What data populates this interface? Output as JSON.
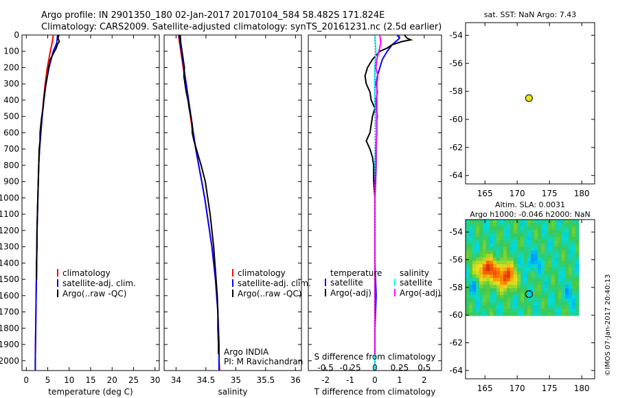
{
  "header": {
    "line1": "Argo profile: IN 2901350_180 02-Jan-2017 20170104_584 58.482S 171.824E",
    "line2": "Climatology: CARS2009. Satellite-adjusted climatology: synTS_20161231.nc (2.5d earlier)"
  },
  "colors": {
    "climatology": "#ff0000",
    "satellite": "#0000ff",
    "argo": "#000000",
    "sal_satellite": "#00ffff",
    "sal_argo": "#ff00ff",
    "float_marker": "#e6e619"
  },
  "chart_data": [
    {
      "id": "temperature",
      "type": "line",
      "xlabel": "temperature (deg C)",
      "ylabel": "",
      "xlim": [
        -1,
        31
      ],
      "ylim": [
        2060,
        0
      ],
      "xticks": [
        "0",
        "5",
        "10",
        "15",
        "20",
        "25",
        "30"
      ],
      "xtick_values": [
        0,
        5,
        10,
        15,
        20,
        25,
        30
      ],
      "yticks": [
        "0",
        "100",
        "200",
        "300",
        "400",
        "500",
        "600",
        "700",
        "800",
        "900",
        "1000",
        "1100",
        "1200",
        "1300",
        "1400",
        "1500",
        "1600",
        "1700",
        "1800",
        "1900",
        "2000"
      ],
      "ytick_values": [
        0,
        100,
        200,
        300,
        400,
        500,
        600,
        700,
        800,
        900,
        1000,
        1100,
        1200,
        1300,
        1400,
        1500,
        1600,
        1700,
        1800,
        1900,
        2000
      ],
      "legend": [
        "climatology",
        "satellite-adj. clim.",
        "Argo(..raw -QC)"
      ],
      "series": [
        {
          "name": "climatology",
          "color": "#ff0000",
          "depth": [
            0,
            50,
            100,
            200,
            300,
            400,
            500,
            600,
            700,
            800,
            1000,
            1200,
            1400,
            1600,
            1800,
            2000,
            2060
          ],
          "values": [
            6.3,
            6.0,
            5.6,
            4.9,
            4.4,
            4.0,
            3.7,
            3.4,
            3.1,
            2.9,
            2.7,
            2.5,
            2.4,
            2.3,
            2.2,
            2.1,
            2.1
          ]
        },
        {
          "name": "satellite-adj. clim.",
          "color": "#0000ff",
          "depth": [
            0,
            50,
            100,
            200,
            300,
            400,
            500,
            600,
            700,
            800,
            1000,
            1200,
            1400,
            1600,
            1800,
            2000,
            2060
          ],
          "values": [
            7.3,
            7.1,
            6.3,
            5.3,
            4.6,
            4.1,
            3.7,
            3.4,
            3.1,
            2.9,
            2.7,
            2.5,
            2.4,
            2.3,
            2.2,
            2.1,
            2.1
          ]
        },
        {
          "name": "Argo(..raw -QC)",
          "color": "#000000",
          "depth": [
            0,
            20,
            40,
            60,
            80,
            100,
            150,
            200,
            250,
            300,
            350,
            400,
            450,
            500,
            550,
            600,
            650,
            700,
            800,
            900,
            1000,
            1100,
            1200,
            1300,
            1400,
            1500
          ],
          "values": [
            7.6,
            7.4,
            7.7,
            7.2,
            7.0,
            6.6,
            5.6,
            5.2,
            4.9,
            4.6,
            4.3,
            4.1,
            3.9,
            3.6,
            3.4,
            3.2,
            3.2,
            3.0,
            2.9,
            2.8,
            2.7,
            2.6,
            2.5,
            2.5,
            2.4,
            2.4
          ]
        }
      ]
    },
    {
      "id": "salinity",
      "type": "line",
      "xlabel": "salinity",
      "xlim": [
        33.8,
        36.1
      ],
      "ylim": [
        2060,
        0
      ],
      "xticks": [
        "34",
        "34.5",
        "35",
        "35.5",
        "36"
      ],
      "xtick_values": [
        34,
        34.5,
        35,
        35.5,
        36
      ],
      "legend": [
        "climatology",
        "satellite-adj. clim.",
        "Argo(..raw -QC)"
      ],
      "annotation": [
        "Argo INDIA",
        "PI: M Ravichandran"
      ],
      "series": [
        {
          "name": "climatology",
          "color": "#ff0000",
          "depth": [
            0,
            100,
            200,
            300,
            400,
            500,
            600,
            700,
            800,
            900,
            1000,
            1100,
            1200,
            1300,
            1400,
            1500,
            1600,
            1700,
            1800,
            1900,
            2000,
            2060
          ],
          "values": [
            34.04,
            34.08,
            34.12,
            34.16,
            34.2,
            34.24,
            34.28,
            34.33,
            34.38,
            34.43,
            34.48,
            34.52,
            34.56,
            34.6,
            34.63,
            34.66,
            34.68,
            34.7,
            34.71,
            34.72,
            34.72,
            34.73
          ]
        },
        {
          "name": "satellite-adj. clim.",
          "color": "#0000ff",
          "depth": [
            0,
            100,
            200,
            300,
            400,
            500,
            600,
            700,
            800,
            900,
            1000,
            1100,
            1200,
            1300,
            1400,
            1500,
            1600,
            1700,
            1800,
            1900,
            2000,
            2060
          ],
          "values": [
            34.05,
            34.09,
            34.13,
            34.17,
            34.21,
            34.25,
            34.29,
            34.33,
            34.38,
            34.43,
            34.48,
            34.52,
            34.56,
            34.6,
            34.63,
            34.66,
            34.68,
            34.7,
            34.71,
            34.72,
            34.72,
            34.72
          ]
        },
        {
          "name": "Argo(..raw -QC)",
          "color": "#000000",
          "depth": [
            0,
            50,
            100,
            150,
            200,
            250,
            300,
            350,
            400,
            450,
            500,
            550,
            600,
            650,
            700,
            750,
            800,
            900,
            1000,
            1100,
            1200,
            1300,
            1400,
            1500,
            1600,
            1700,
            1800,
            1900,
            1960
          ],
          "values": [
            34.07,
            34.08,
            34.1,
            34.12,
            34.14,
            34.13,
            34.15,
            34.17,
            34.2,
            34.22,
            34.25,
            34.27,
            34.27,
            34.3,
            34.34,
            34.38,
            34.42,
            34.49,
            34.53,
            34.57,
            34.6,
            34.63,
            34.65,
            34.67,
            34.69,
            34.7,
            34.7,
            34.71,
            34.71
          ]
        }
      ]
    },
    {
      "id": "difference",
      "type": "line",
      "xlabel": "T difference from climatology",
      "xlabel_top": "S difference from climatology",
      "xlim": [
        -2.7,
        2.7
      ],
      "ylim": [
        2060,
        0
      ],
      "xticks": [
        "-2",
        "-1",
        "0",
        "1",
        "2"
      ],
      "xtick_values": [
        -2,
        -1,
        0,
        1,
        2
      ],
      "xticks_s": [
        "-0.5",
        "-0.25",
        "0",
        "0.25",
        "0.5"
      ],
      "xtick_values_s": [
        -0.5,
        -0.25,
        0,
        0.25,
        0.5
      ],
      "s_scale": 4,
      "legend_temperature": [
        "temperature",
        "satellite",
        "Argo(-adj)"
      ],
      "legend_salinity": [
        "salinity",
        "satellite",
        "Argo(-adj)"
      ],
      "series": [
        {
          "name": "temperature satellite",
          "color": "#0000ff",
          "depth": [
            0,
            20,
            40,
            60,
            80,
            100,
            150,
            200,
            250,
            300,
            350,
            400,
            450,
            500,
            550,
            600,
            700,
            800,
            1000,
            1200,
            1400,
            1600,
            1800,
            1960
          ],
          "values": [
            0.9,
            1.0,
            0.85,
            0.7,
            0.6,
            0.5,
            0.3,
            0.2,
            0.1,
            0.05,
            0.1,
            0.05,
            0.05,
            0.1,
            0.05,
            0.05,
            0.05,
            0.05,
            0.0,
            0.0,
            0.0,
            0.05,
            0.0,
            0.0
          ]
        },
        {
          "name": "temperature Argo(-adj)",
          "color": "#000000",
          "depth": [
            0,
            20,
            30,
            40,
            60,
            80,
            100,
            150,
            200,
            250,
            300,
            350,
            400,
            450,
            500,
            550,
            600,
            650,
            700,
            750,
            800,
            900,
            1000,
            1200,
            1400,
            1600,
            1800,
            1960
          ],
          "values": [
            1.2,
            1.3,
            1.45,
            1.1,
            0.7,
            0.5,
            0.2,
            -0.1,
            -0.3,
            -0.4,
            -0.35,
            -0.2,
            -0.15,
            0.0,
            -0.1,
            -0.15,
            -0.2,
            -0.35,
            -0.2,
            -0.1,
            -0.05,
            -0.05,
            0.0,
            0.0,
            0.0,
            0.0,
            0.0,
            0.0
          ]
        },
        {
          "name": "salinity satellite",
          "color": "#00ffff",
          "depth": [
            0,
            100,
            200,
            400,
            600,
            800,
            1000,
            1200,
            1400,
            1600,
            1800,
            2000,
            2060
          ],
          "values": [
            0.0,
            0.01,
            0.0,
            0.0,
            0.01,
            0.0,
            0.0,
            0.0,
            0.0,
            0.0,
            0.0,
            0.0,
            0.0
          ]
        },
        {
          "name": "salinity Argo(-adj)",
          "color": "#ff00ff",
          "depth": [
            0,
            50,
            100,
            150,
            200,
            250,
            300,
            400,
            500,
            600,
            700,
            800,
            900,
            1000,
            1200,
            1400,
            1600,
            1800,
            1960
          ],
          "values": [
            0.05,
            0.06,
            0.04,
            0.02,
            0.01,
            0.03,
            0.02,
            0.02,
            0.02,
            0.02,
            0.01,
            0.01,
            0.0,
            0.0,
            0.0,
            0.0,
            0.0,
            0.0,
            0.0
          ]
        }
      ]
    },
    {
      "id": "sst_map",
      "type": "scatter",
      "title": "sat. SST: NaN  Argo: 7.43",
      "xlim": [
        162,
        182
      ],
      "ylim": [
        -64.6,
        -53.1
      ],
      "xticks": [
        "165",
        "170",
        "175",
        "180"
      ],
      "xtick_values": [
        165,
        170,
        175,
        180
      ],
      "yticks": [
        "-54",
        "-56",
        "-58",
        "-60",
        "-62",
        "-64"
      ],
      "ytick_values": [
        -54,
        -56,
        -58,
        -60,
        -62,
        -64
      ],
      "points": [
        {
          "lon": 171.824,
          "lat": -58.482
        }
      ]
    },
    {
      "id": "sla_map",
      "type": "heatmap",
      "title_line1": "Altim. SLA: 0.0031",
      "title_line2": "Argo h1000: -0.046 h2000: NaN",
      "xlim": [
        162,
        182
      ],
      "ylim": [
        -64.6,
        -53.1
      ],
      "xticks": [
        "165",
        "170",
        "175",
        "180"
      ],
      "xtick_values": [
        165,
        170,
        175,
        180
      ],
      "yticks": [
        "-54",
        "-56",
        "-58",
        "-60",
        "-62",
        "-64"
      ],
      "ytick_values": [
        -54,
        -56,
        -58,
        -60,
        -62,
        -64
      ],
      "field_extent": {
        "lon": [
          162,
          180
        ],
        "lat": [
          -60.2,
          -53.1
        ]
      },
      "points": [
        {
          "lon": 171.824,
          "lat": -58.482
        }
      ]
    }
  ],
  "watermark": "©IMOS 07-Jan-2017 20:40:13"
}
